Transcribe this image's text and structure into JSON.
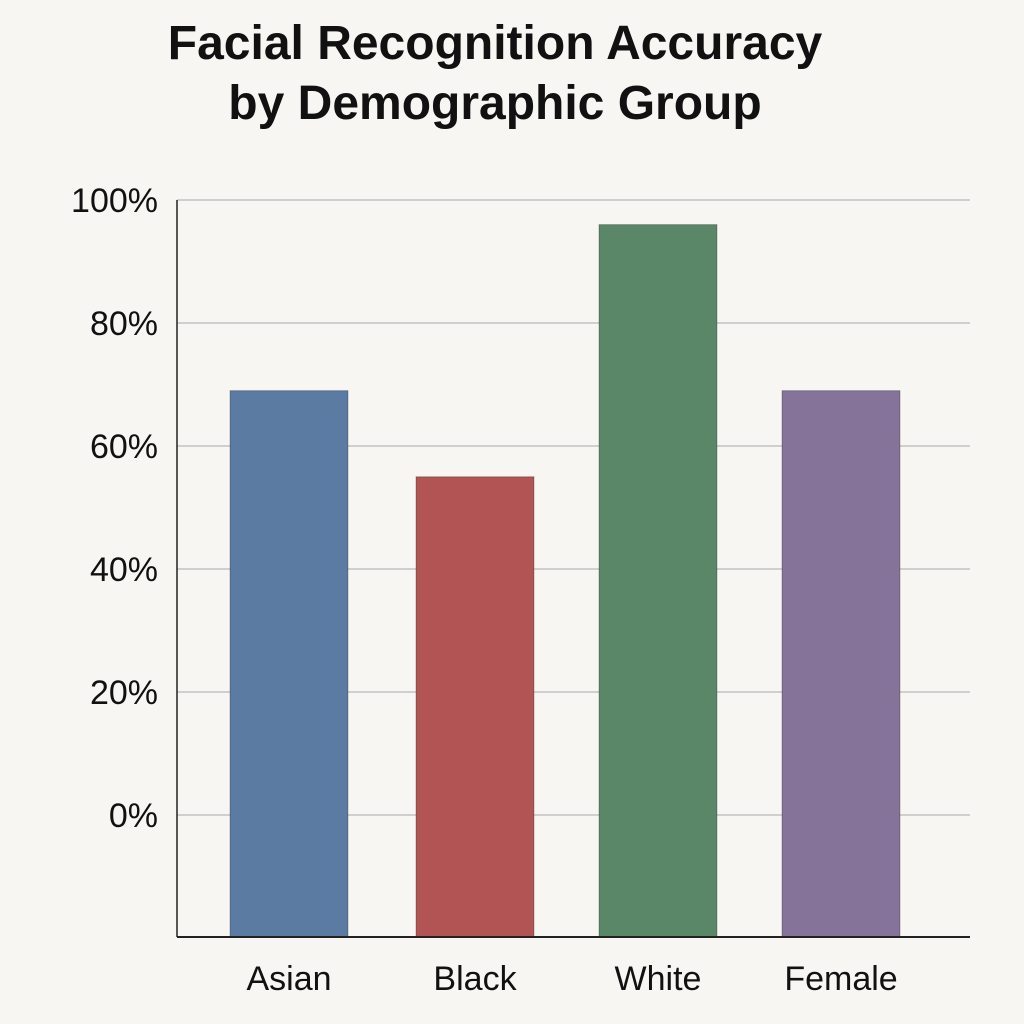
{
  "chart_data": {
    "type": "bar",
    "title_lines": [
      "Facial Recognition Accuracy",
      "by Demographic Group"
    ],
    "xlabel": "",
    "ylabel": "",
    "categories": [
      "Asian",
      "Black",
      "White",
      "Female"
    ],
    "values": [
      69,
      55,
      96,
      69
    ],
    "colors": [
      "#5b7ba3",
      "#b35454",
      "#5b8769",
      "#85739a"
    ],
    "y_ticks": [
      0,
      20,
      40,
      60,
      80,
      100
    ],
    "y_tick_labels": [
      "0%",
      "20%",
      "40%",
      "60%",
      "80%",
      "100%"
    ],
    "ylim": [
      0,
      100
    ],
    "grid": true,
    "legend": "none"
  }
}
